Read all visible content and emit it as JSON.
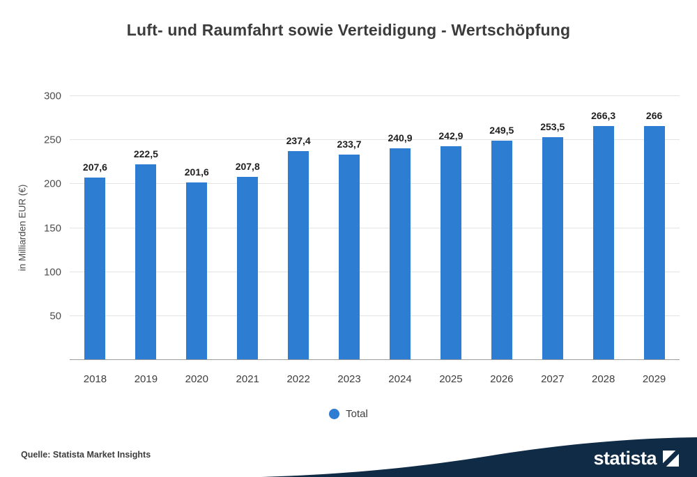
{
  "title": "Luft- und Raumfahrt sowie Verteidigung - Wertschöpfung",
  "chart_data": {
    "type": "bar",
    "categories": [
      "2018",
      "2019",
      "2020",
      "2021",
      "2022",
      "2023",
      "2024",
      "2025",
      "2026",
      "2027",
      "2028",
      "2029"
    ],
    "values": [
      207.6,
      222.5,
      201.6,
      207.8,
      237.4,
      233.7,
      240.9,
      242.9,
      249.5,
      253.5,
      266.3,
      266
    ],
    "value_labels": [
      "207,6",
      "222,5",
      "201,6",
      "207,8",
      "237,4",
      "233,7",
      "240,9",
      "242,9",
      "249,5",
      "253,5",
      "266,3",
      "266"
    ],
    "title": "Luft- und Raumfahrt sowie Verteidigung - Wertschöpfung",
    "xlabel": "",
    "ylabel": "in Milliarden EUR (€)",
    "ylim": [
      0,
      300
    ],
    "yticks": [
      50,
      100,
      150,
      200,
      250,
      300
    ],
    "grid": true,
    "legend": {
      "position": "bottom",
      "items": [
        {
          "label": "Total",
          "color": "#2d7dd2"
        }
      ]
    }
  },
  "footer": {
    "source": "Quelle: Statista Market Insights",
    "brand": "statista"
  },
  "colors": {
    "bar": "#2d7dd2",
    "navy": "#0f2b46",
    "grid": "#e3e3e3",
    "axis": "#9a9a9a"
  }
}
